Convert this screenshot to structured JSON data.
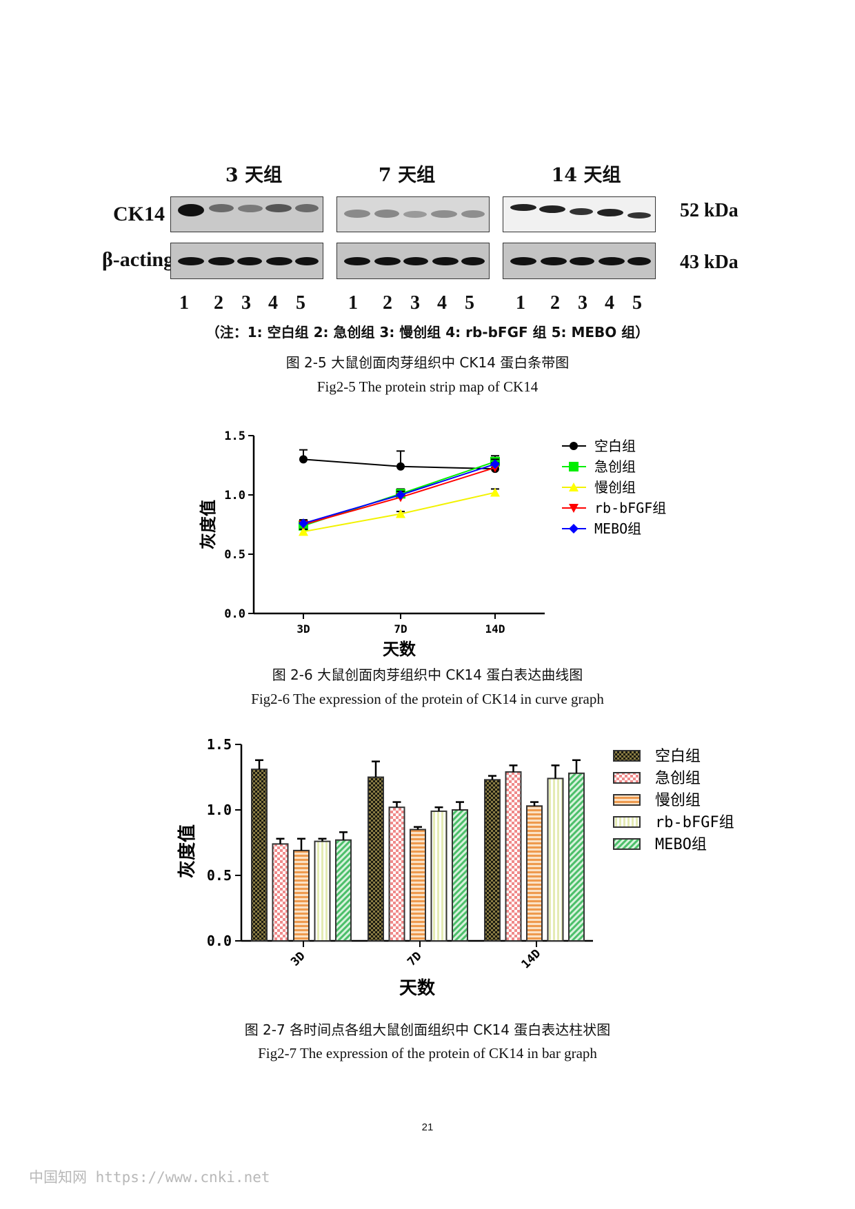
{
  "blot": {
    "groups": [
      "3 天组",
      "7 天组",
      "14 天组"
    ],
    "rows": [
      "CK14",
      "β-acting"
    ],
    "kda": [
      "52 kDa",
      "43 kDa"
    ],
    "lanes": [
      "1",
      "2",
      "3",
      "4",
      "5"
    ],
    "note": "（注：1: 空白组 2: 急创组 3: 慢创组 4: rb-bFGF 组 5: MEBO 组）"
  },
  "fig5": {
    "caption_zh": "图 2-5 大鼠创面肉芽组织中 CK14 蛋白条带图",
    "caption_en": "Fig2-5 The protein strip map of CK14"
  },
  "fig6": {
    "caption_zh": "图 2-6 大鼠创面肉芽组织中 CK14 蛋白表达曲线图",
    "caption_en": "Fig2-6 The expression of the protein of CK14 in curve graph"
  },
  "fig7": {
    "caption_zh": "图 2-7  各时间点各组大鼠创面组织中 CK14 蛋白表达柱状图",
    "caption_en": "Fig2-7 The expression of the protein of CK14 in bar graph"
  },
  "page_number": "21",
  "watermark": "中国知网   https://www.cnki.net",
  "chart_data": [
    {
      "type": "line",
      "xlabel": "天数",
      "ylabel": "灰度值",
      "categories": [
        "3D",
        "7D",
        "14D"
      ],
      "ylim": [
        0,
        1.5
      ],
      "yticks": [
        "0.0",
        "0.5",
        "1.0",
        "1.5"
      ],
      "legend_position": "right",
      "series": [
        {
          "name": "空白组",
          "values": [
            1.3,
            1.24,
            1.22
          ],
          "errors": [
            0.08,
            0.13,
            0.05
          ],
          "color": "#000000",
          "marker": "circle"
        },
        {
          "name": "急创组",
          "values": [
            0.74,
            1.01,
            1.28
          ],
          "errors": [
            0.04,
            0.04,
            0.05
          ],
          "color": "#00ee00",
          "marker": "square"
        },
        {
          "name": "慢创组",
          "values": [
            0.69,
            0.84,
            1.02
          ],
          "errors": [
            0.02,
            0.02,
            0.03
          ],
          "color": "#ffff00",
          "marker": "triangle-up"
        },
        {
          "name": "rb-bFGF组",
          "values": [
            0.75,
            0.98,
            1.23
          ],
          "errors": [
            0.02,
            0.02,
            0.04
          ],
          "color": "#ff0000",
          "marker": "triangle-down"
        },
        {
          "name": "MEBO组",
          "values": [
            0.76,
            1.0,
            1.26
          ],
          "errors": [
            0.03,
            0.03,
            0.04
          ],
          "color": "#0000ff",
          "marker": "diamond"
        }
      ]
    },
    {
      "type": "bar",
      "xlabel": "天数",
      "ylabel": "灰度值",
      "categories": [
        "3D",
        "7D",
        "14D"
      ],
      "ylim": [
        0,
        1.5
      ],
      "yticks": [
        "0.0",
        "0.5",
        "1.0",
        "1.5"
      ],
      "legend_position": "right",
      "series": [
        {
          "name": "空白组",
          "values": [
            1.31,
            1.25,
            1.23
          ],
          "errors": [
            0.07,
            0.12,
            0.03
          ],
          "color": "#4a4628",
          "pattern": "crosshatch"
        },
        {
          "name": "急创组",
          "values": [
            0.74,
            1.02,
            1.29
          ],
          "errors": [
            0.04,
            0.04,
            0.05
          ],
          "color": "#f4a6a6",
          "pattern": "checker"
        },
        {
          "name": "慢创组",
          "values": [
            0.69,
            0.85,
            1.03
          ],
          "errors": [
            0.09,
            0.02,
            0.03
          ],
          "color": "#f2aa66",
          "pattern": "horizontal"
        },
        {
          "name": "rb-bFGF组",
          "values": [
            0.76,
            0.99,
            1.24
          ],
          "errors": [
            0.02,
            0.03,
            0.1
          ],
          "color": "#eef2c8",
          "pattern": "vertical"
        },
        {
          "name": "MEBO组",
          "values": [
            0.77,
            1.0,
            1.28
          ],
          "errors": [
            0.06,
            0.06,
            0.1
          ],
          "color": "#6fcf8a",
          "pattern": "diagonal"
        }
      ]
    }
  ]
}
